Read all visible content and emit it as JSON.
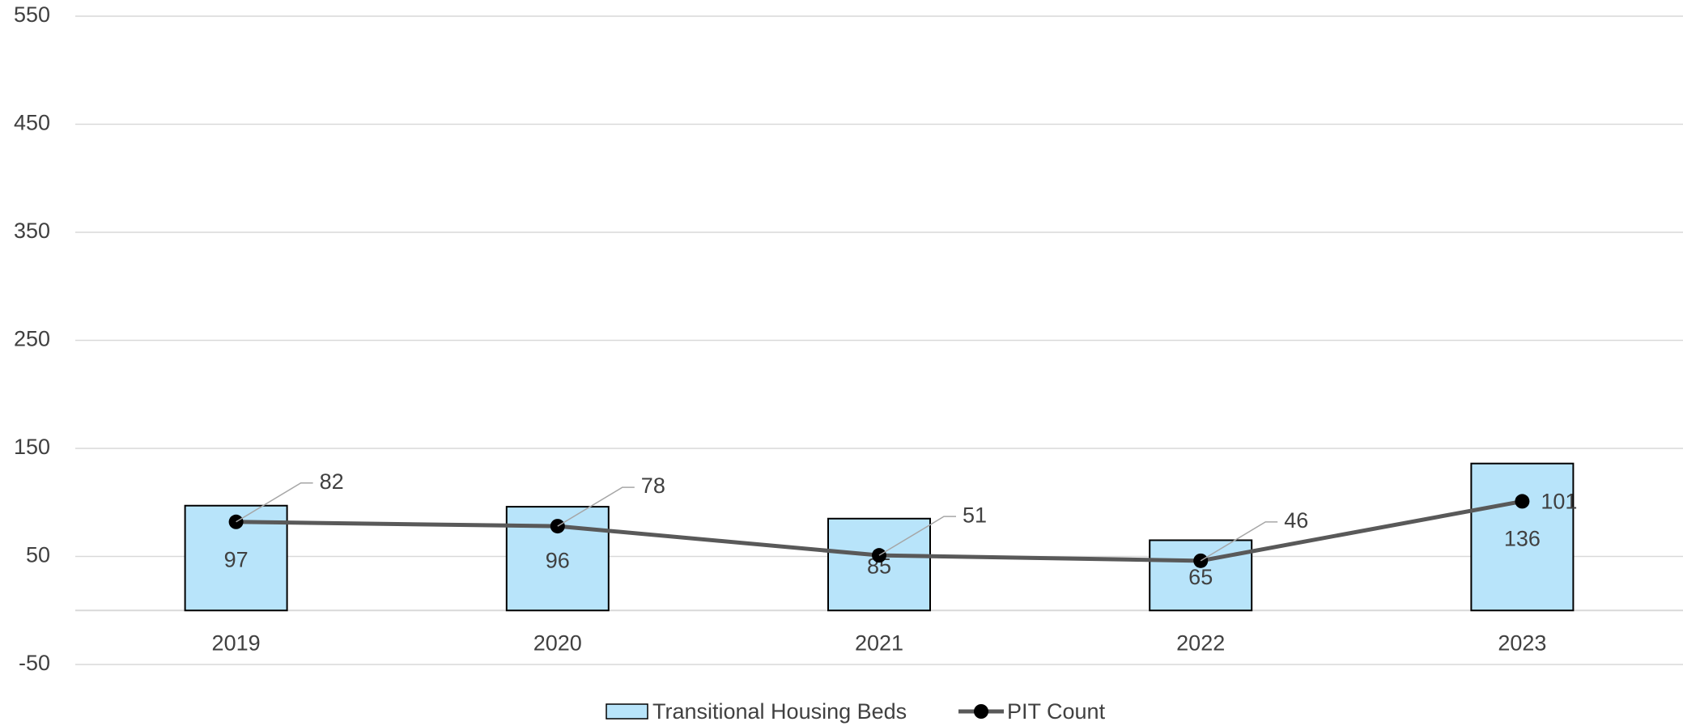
{
  "chart_data": {
    "type": "bar_line",
    "categories": [
      "2019",
      "2020",
      "2021",
      "2022",
      "2023"
    ],
    "series": [
      {
        "name": "Transitional Housing Beds",
        "type": "bar",
        "color": "#b8e4fa",
        "values": [
          97,
          96,
          85,
          65,
          136
        ]
      },
      {
        "name": "PIT Count",
        "type": "line",
        "color": "#595959",
        "values": [
          82,
          78,
          51,
          46,
          101
        ]
      }
    ],
    "ylim": [
      -50,
      550
    ],
    "yticks": [
      -50,
      50,
      150,
      250,
      350,
      450,
      550
    ],
    "grid": true,
    "legend": "bottom"
  }
}
